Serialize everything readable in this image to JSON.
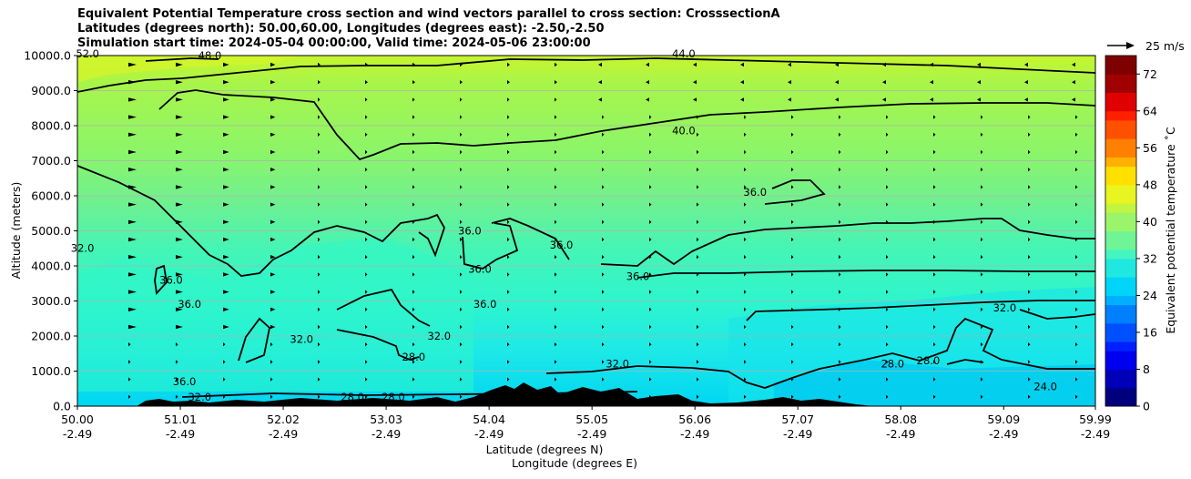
{
  "chart_data": {
    "type": "heatmap",
    "title_lines": [
      "Equivalent Potential Temperature cross section and wind vectors parallel to cross section: CrosssectionA",
      "Latitudes (degrees north): 50.00,60.00, Longitudes (degrees east): -2.50,-2.50",
      "Simulation start time: 2024-05-04 00:00:00, Valid time: 2024-05-06 23:00:00"
    ],
    "ylabel": "Altitude (meters)",
    "xlabel_lines": [
      "Latitude (degrees N)",
      "Longitude (degrees E)"
    ],
    "ylim": [
      0,
      10000
    ],
    "y_ticks": [
      {
        "v": 0,
        "label": "0.0"
      },
      {
        "v": 1000,
        "label": "1000.0"
      },
      {
        "v": 2000,
        "label": "2000.0"
      },
      {
        "v": 3000,
        "label": "3000.0"
      },
      {
        "v": 4000,
        "label": "4000.0"
      },
      {
        "v": 5000,
        "label": "5000.0"
      },
      {
        "v": 6000,
        "label": "6000.0"
      },
      {
        "v": 7000,
        "label": "7000.0"
      },
      {
        "v": 8000,
        "label": "8000.0"
      },
      {
        "v": 9000,
        "label": "9000.0"
      },
      {
        "v": 10000,
        "label": "10000.0"
      }
    ],
    "xlim": [
      50.0,
      59.99
    ],
    "x_ticks": [
      {
        "v": 50.0,
        "lat": "50.00",
        "lon": "-2.49"
      },
      {
        "v": 51.01,
        "lat": "51.01",
        "lon": "-2.49"
      },
      {
        "v": 52.02,
        "lat": "52.02",
        "lon": "-2.49"
      },
      {
        "v": 53.03,
        "lat": "53.03",
        "lon": "-2.49"
      },
      {
        "v": 54.04,
        "lat": "54.04",
        "lon": "-2.49"
      },
      {
        "v": 55.05,
        "lat": "55.05",
        "lon": "-2.49"
      },
      {
        "v": 56.06,
        "lat": "56.06",
        "lon": "-2.49"
      },
      {
        "v": 57.07,
        "lat": "57.07",
        "lon": "-2.49"
      },
      {
        "v": 58.08,
        "lat": "58.08",
        "lon": "-2.49"
      },
      {
        "v": 59.09,
        "lat": "59.09",
        "lon": "-2.49"
      },
      {
        "v": 59.99,
        "lat": "59.99",
        "lon": "-2.49"
      }
    ],
    "grid": "horizontal",
    "colorbar": {
      "label": "Equivalent potential temperature ˚C",
      "min": 0,
      "max": 76,
      "ticks": [
        {
          "v": 0,
          "label": "0"
        },
        {
          "v": 8,
          "label": "8"
        },
        {
          "v": 16,
          "label": "16"
        },
        {
          "v": 24,
          "label": "24"
        },
        {
          "v": 32,
          "label": "32"
        },
        {
          "v": 40,
          "label": "40"
        },
        {
          "v": 48,
          "label": "48"
        },
        {
          "v": 56,
          "label": "56"
        },
        {
          "v": 64,
          "label": "64"
        },
        {
          "v": 72,
          "label": "72"
        }
      ]
    },
    "wind_key": {
      "label": "25 m/s"
    },
    "contour_labels": [
      {
        "text": "44.0",
        "lat": 55.95,
        "alt": 9950
      },
      {
        "text": "40.0",
        "lat": 55.95,
        "alt": 7750
      },
      {
        "text": "36.0",
        "lat": 56.65,
        "alt": 6000
      },
      {
        "text": "36.0",
        "lat": 54.75,
        "alt": 4500
      },
      {
        "text": "36.0",
        "lat": 55.5,
        "alt": 3600
      },
      {
        "text": "36.0",
        "lat": 53.95,
        "alt": 3800
      },
      {
        "text": "36.0",
        "lat": 54.0,
        "alt": 2800
      },
      {
        "text": "36.0",
        "lat": 53.85,
        "alt": 4900
      },
      {
        "text": "36.0",
        "lat": 50.92,
        "alt": 3500
      },
      {
        "text": "36.0",
        "lat": 51.1,
        "alt": 2800
      },
      {
        "text": "36.0",
        "lat": 51.05,
        "alt": 600
      },
      {
        "text": "32.0",
        "lat": 50.05,
        "alt": 4400
      },
      {
        "text": "32.0",
        "lat": 52.2,
        "alt": 1800
      },
      {
        "text": "32.0",
        "lat": 53.55,
        "alt": 1900
      },
      {
        "text": "32.0",
        "lat": 55.3,
        "alt": 1100
      },
      {
        "text": "32.0",
        "lat": 59.1,
        "alt": 2700
      },
      {
        "text": "28.0",
        "lat": 53.3,
        "alt": 1300
      },
      {
        "text": "28.0",
        "lat": 58.0,
        "alt": 1100
      },
      {
        "text": "28.0",
        "lat": 58.35,
        "alt": 1200
      },
      {
        "text": "28.0",
        "lat": 52.7,
        "alt": 150
      },
      {
        "text": "28.0",
        "lat": 53.1,
        "alt": 150
      },
      {
        "text": "24.0",
        "lat": 59.5,
        "alt": 450
      },
      {
        "text": "48.0",
        "lat": 51.3,
        "alt": 9900
      },
      {
        "text": "52.0",
        "lat": 50.1,
        "alt": 9950
      },
      {
        "text": "32.0",
        "lat": 51.2,
        "alt": 150
      }
    ]
  }
}
